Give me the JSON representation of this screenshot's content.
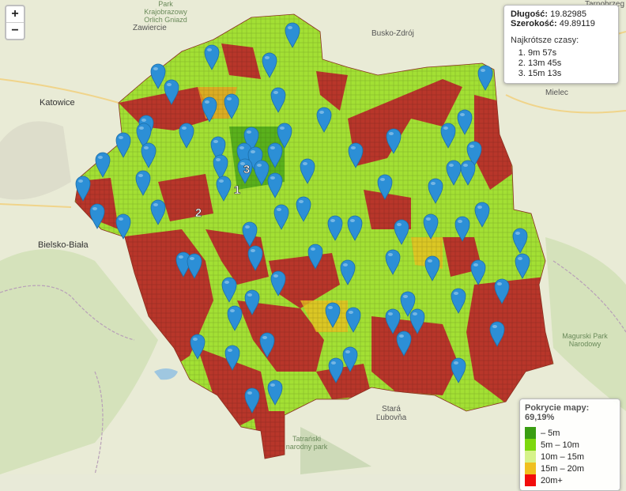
{
  "zoom": {
    "in_label": "+",
    "out_label": "−"
  },
  "info": {
    "lon_label": "Długość:",
    "lon_value": "19.82985",
    "lat_label": "Szerokość:",
    "lat_value": "49.89119",
    "times_label": "Najkrótsze czasy:",
    "times": [
      "9m 57s",
      "13m 45s",
      "15m 13s"
    ]
  },
  "legend": {
    "title": "Pokrycie mapy: 69,19%",
    "items": [
      {
        "label": "– 5m",
        "color": "#3a9d12"
      },
      {
        "label": "5m – 10m",
        "color": "#7dd80e"
      },
      {
        "label": "10m – 15m",
        "color": "#d6f28a"
      },
      {
        "label": "15m – 20m",
        "color": "#f0c020"
      },
      {
        "label": "20m+",
        "color": "#f20c0c"
      }
    ]
  },
  "places": [
    {
      "name": "Zawiercie"
    },
    {
      "name": "Katowice"
    },
    {
      "name": "Busko-Zdrój"
    },
    {
      "name": "Mielec"
    },
    {
      "name": "Tarnobrzeg"
    },
    {
      "name": "Bielsko-Biała"
    },
    {
      "name": "Stará Ľubovňa"
    },
    {
      "name": "Tatrański narodny park"
    },
    {
      "name": "Magurski Park Narodowy"
    },
    {
      "name": "Park Krajobrazowy Orlich Gniazd"
    }
  ],
  "rank_labels": [
    "1",
    "2",
    "3"
  ]
}
